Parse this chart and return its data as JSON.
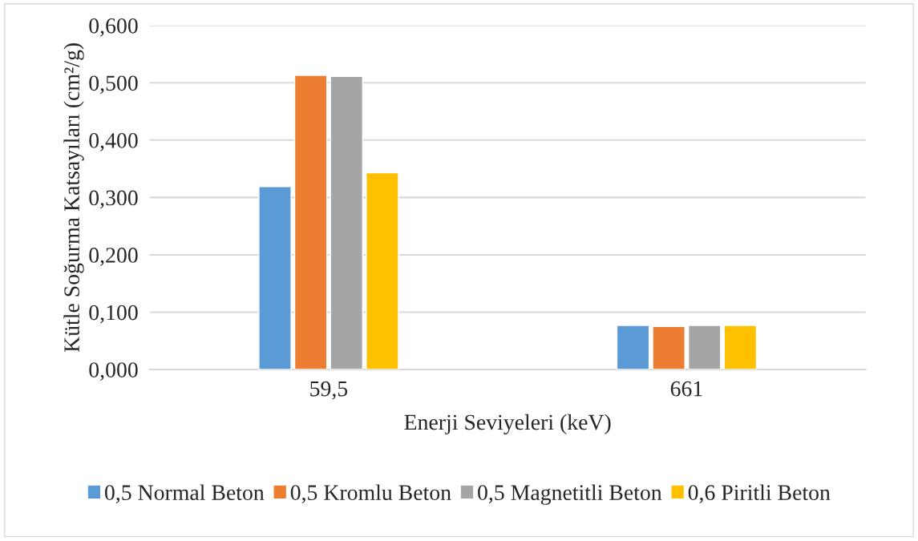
{
  "chart_data": {
    "type": "bar",
    "xlabel": "Enerji Seviyeleri (keV)",
    "ylabel": "Kütle Soğurma Katsayıları (cm²/g)",
    "categories": [
      "59,5",
      "661"
    ],
    "series": [
      {
        "name": "0,5 Normal Beton",
        "color": "#5b9bd5",
        "values": [
          0.319,
          0.077
        ]
      },
      {
        "name": "0,5 Kromlu Beton",
        "color": "#ed7d31",
        "values": [
          0.513,
          0.075
        ]
      },
      {
        "name": "0,5 Magnetitli Beton",
        "color": "#a5a5a5",
        "values": [
          0.511,
          0.077
        ]
      },
      {
        "name": "0,6 Piritli Beton",
        "color": "#ffc000",
        "values": [
          0.343,
          0.077
        ]
      }
    ],
    "ylim": [
      0,
      0.6
    ],
    "yticks": [
      {
        "value": 0,
        "label": "0,000"
      },
      {
        "value": 0.1,
        "label": "0,100"
      },
      {
        "value": 0.2,
        "label": "0,200"
      },
      {
        "value": 0.3,
        "label": "0,300"
      },
      {
        "value": 0.4,
        "label": "0,400"
      },
      {
        "value": 0.5,
        "label": "0,500"
      },
      {
        "value": 0.6,
        "label": "0,600"
      }
    ],
    "grid": "y",
    "legend": "bottom"
  }
}
